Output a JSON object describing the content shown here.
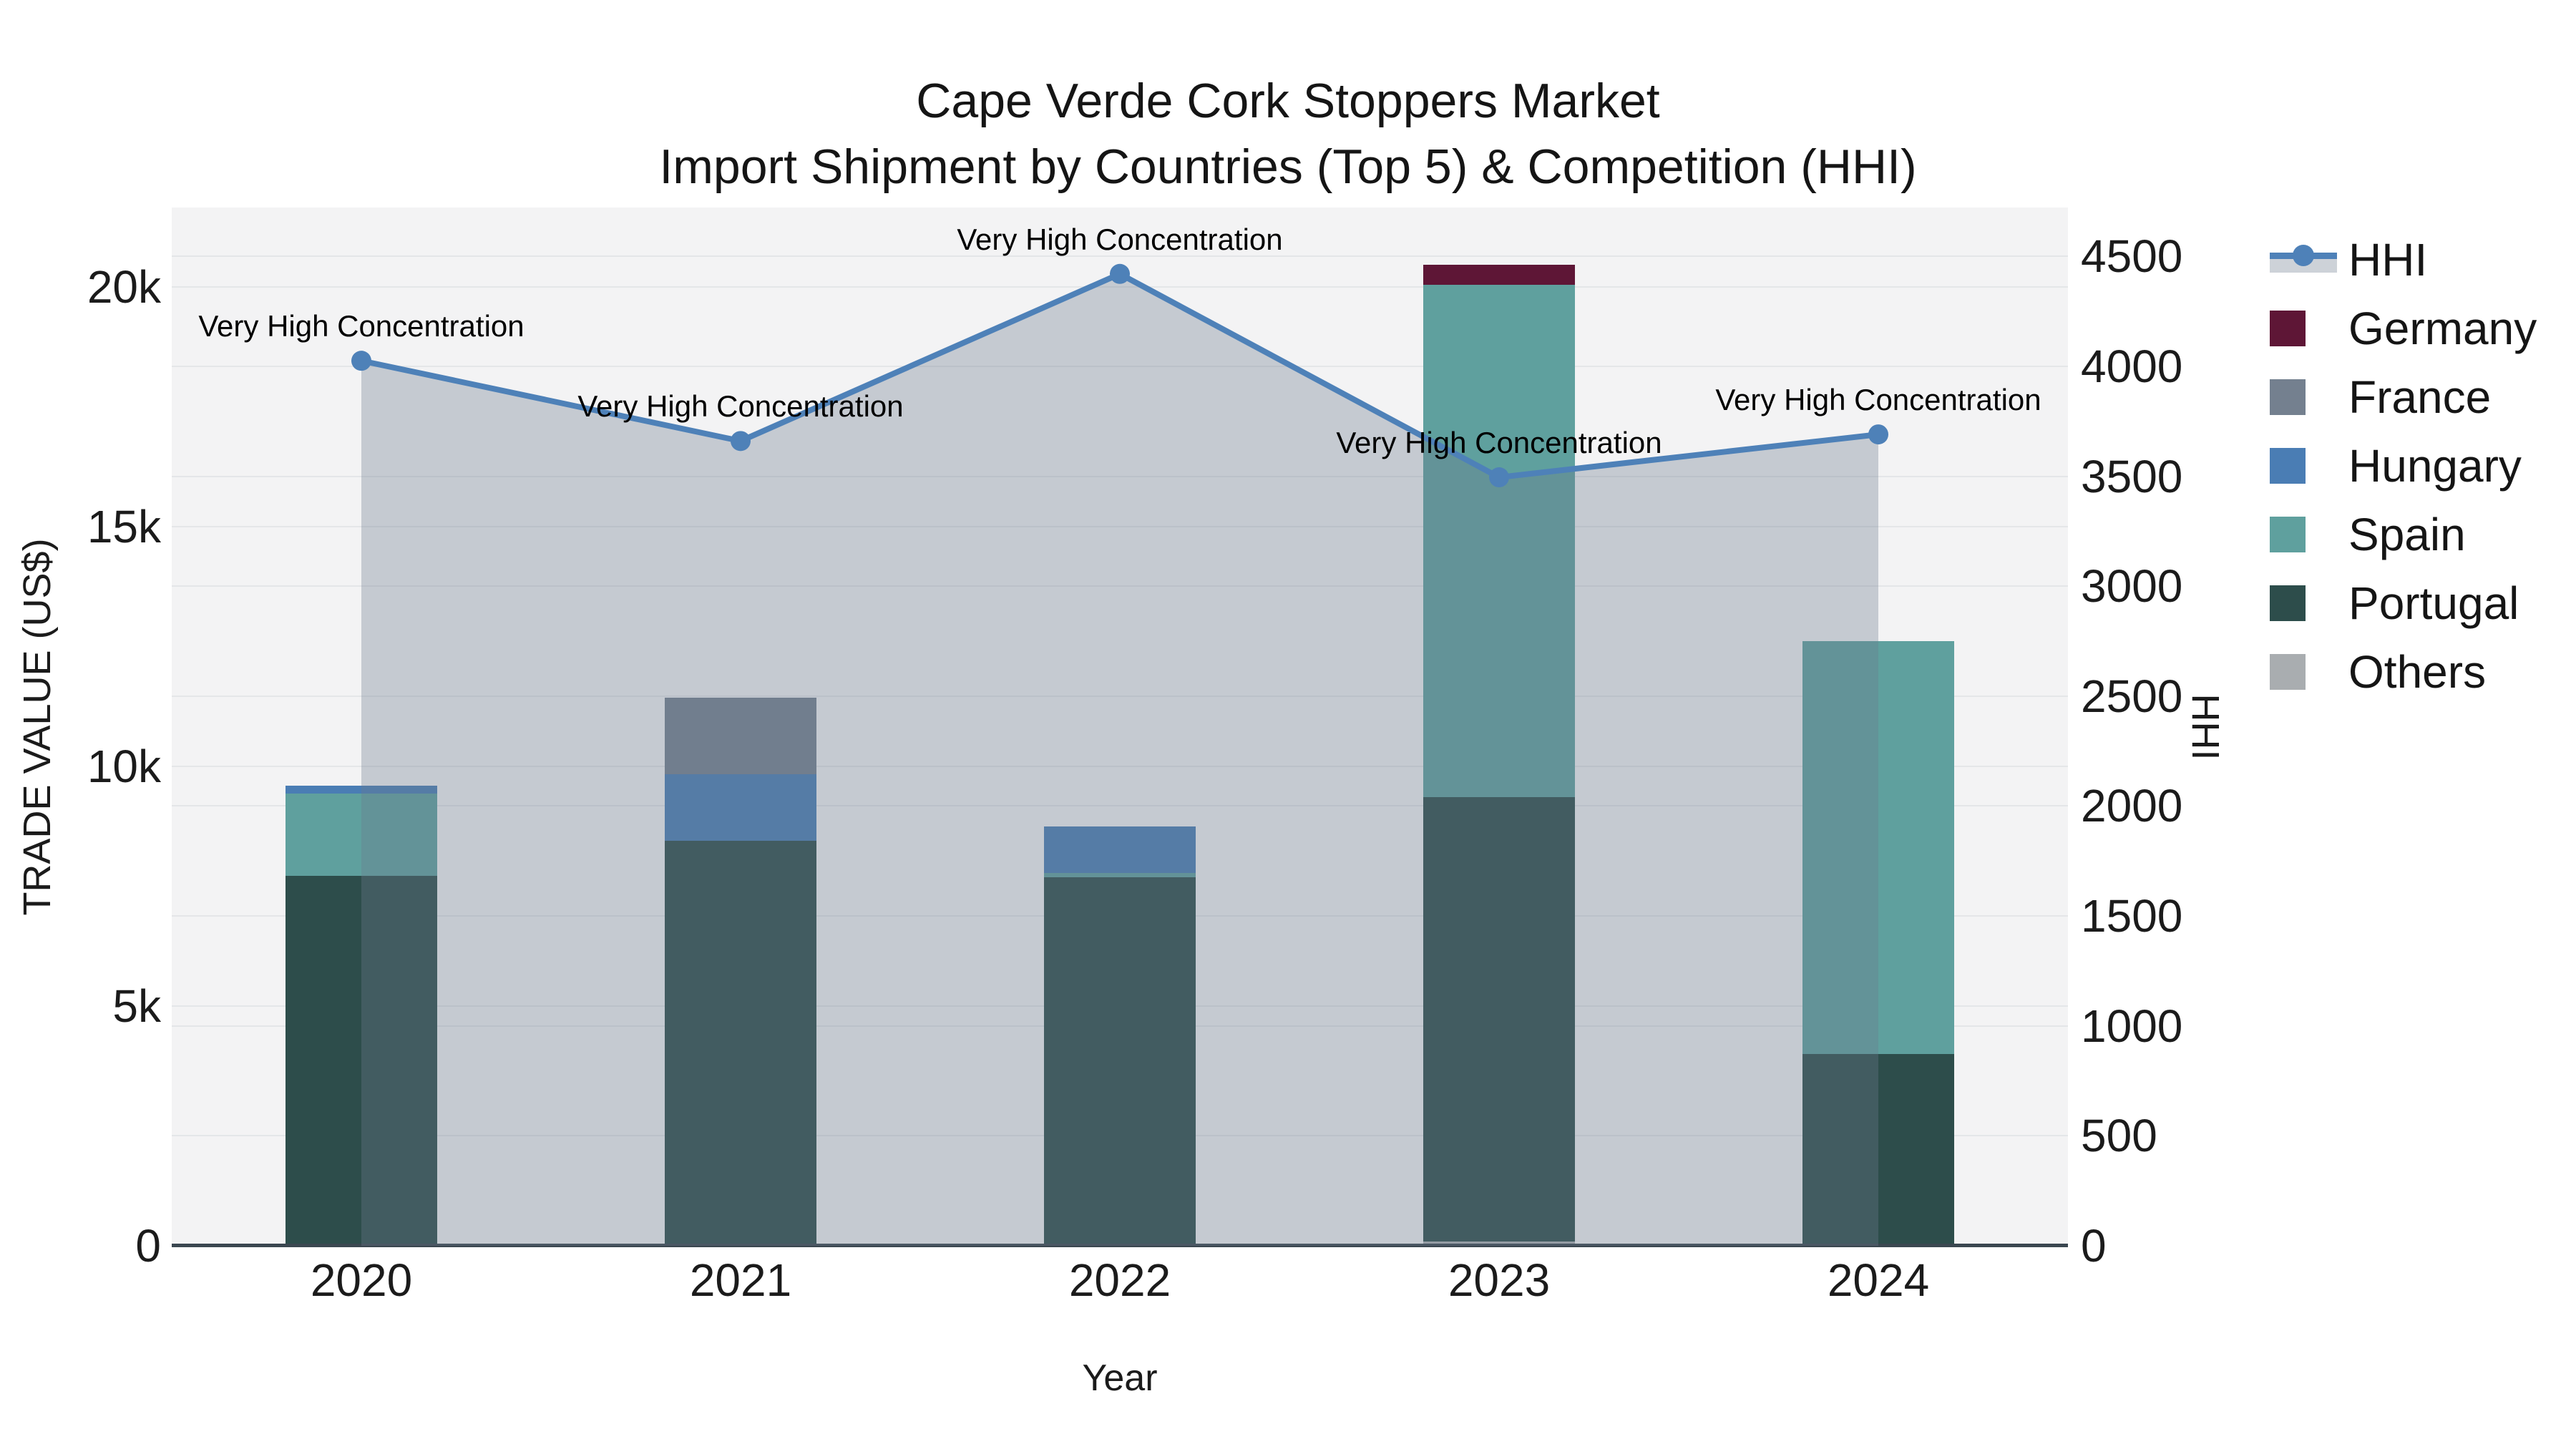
{
  "title": {
    "line1": "Cape Verde Cork Stoppers Market",
    "line2": "Import Shipment by Countries (Top 5) & Competition (HHI)"
  },
  "axes": {
    "x_title": "Year",
    "y_left_title": "TRADE VALUE (US$)",
    "y_right_title": "HHI"
  },
  "chart_data": {
    "type": "bar",
    "subtype": "stacked-bar-with-line-overlay-dual-axis",
    "categories": [
      "2020",
      "2021",
      "2022",
      "2023",
      "2024"
    ],
    "stack_order_bottom_to_top": [
      "Others",
      "Portugal",
      "Spain",
      "Hungary",
      "France",
      "Germany"
    ],
    "series": [
      {
        "name": "Others",
        "type": "bar",
        "color": "#A9ADB0",
        "values": [
          0,
          0,
          0,
          90,
          0
        ]
      },
      {
        "name": "Portugal",
        "type": "bar",
        "color": "#2D4D4B",
        "values": [
          7720,
          8450,
          7690,
          9270,
          4000
        ]
      },
      {
        "name": "Spain",
        "type": "bar",
        "color": "#5FA09E",
        "values": [
          1715,
          0,
          80,
          10690,
          8610
        ]
      },
      {
        "name": "Hungary",
        "type": "bar",
        "color": "#4A7DB4",
        "values": [
          165,
          1390,
          980,
          0,
          0
        ]
      },
      {
        "name": "France",
        "type": "bar",
        "color": "#74808F",
        "values": [
          0,
          1600,
          0,
          0,
          0
        ]
      },
      {
        "name": "Germany",
        "type": "bar",
        "color": "#5E1636",
        "values": [
          0,
          0,
          0,
          420,
          0
        ]
      }
    ],
    "line_series": {
      "name": "HHI",
      "axis": "right",
      "color": "#4E81B8",
      "fill_color": "rgba(108,124,140,0.34)",
      "values": [
        4025,
        3660,
        4420,
        3495,
        3690
      ]
    },
    "annotations": [
      {
        "category": "2020",
        "text": "Very High Concentration"
      },
      {
        "category": "2021",
        "text": "Very High Concentration"
      },
      {
        "category": "2022",
        "text": "Very High Concentration"
      },
      {
        "category": "2023",
        "text": "Very High Concentration"
      },
      {
        "category": "2024",
        "text": "Very High Concentration"
      }
    ],
    "y_left": {
      "label": "TRADE VALUE (US$)",
      "min": 0,
      "max": 21660,
      "ticks": [
        0,
        5000,
        10000,
        15000,
        20000
      ],
      "tick_labels": [
        "0",
        "5k",
        "10k",
        "15k",
        "20k"
      ]
    },
    "y_right": {
      "label": "HHI",
      "min": 0,
      "max": 4722,
      "ticks": [
        0,
        500,
        1000,
        1500,
        2000,
        2500,
        3000,
        3500,
        4000,
        4500
      ],
      "tick_labels": [
        "0",
        "500",
        "1000",
        "1500",
        "2000",
        "2500",
        "3000",
        "3500",
        "4000",
        "4500"
      ]
    },
    "grid": true,
    "legend_position": "right",
    "legend": [
      {
        "label": "HHI",
        "swatch": "line-marker",
        "color": "#4E81B8"
      },
      {
        "label": "Germany",
        "swatch": "square",
        "color": "#5E1636"
      },
      {
        "label": "France",
        "swatch": "square",
        "color": "#74808F"
      },
      {
        "label": "Hungary",
        "swatch": "square",
        "color": "#4A7DB4"
      },
      {
        "label": "Spain",
        "swatch": "square",
        "color": "#5FA09E"
      },
      {
        "label": "Portugal",
        "swatch": "square",
        "color": "#2D4D4B"
      },
      {
        "label": "Others",
        "swatch": "square",
        "color": "#A9ADB0"
      }
    ]
  }
}
